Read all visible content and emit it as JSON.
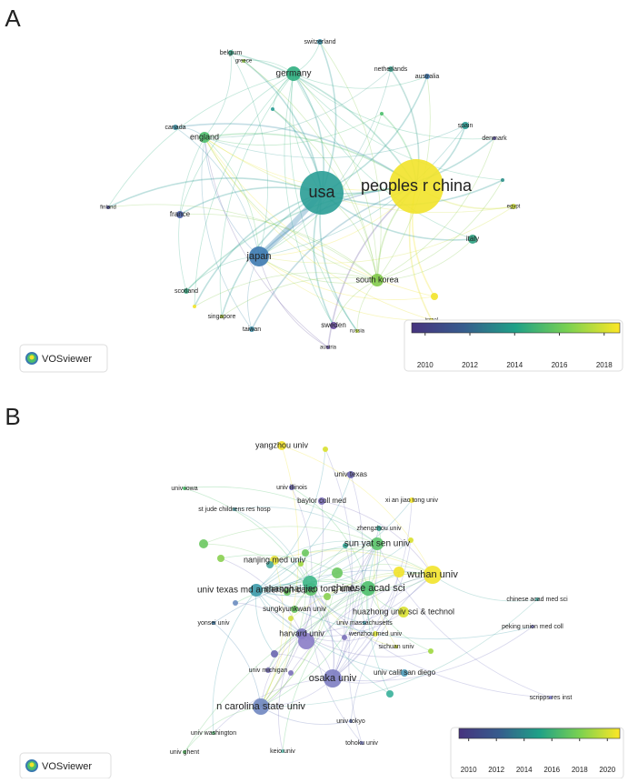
{
  "panels": [
    {
      "label": "A",
      "nodes": [
        "peoples r china",
        "usa",
        "japan",
        "germany",
        "england",
        "france",
        "south korea",
        "italy",
        "spain",
        "switzerland",
        "belgium",
        "greece",
        "netherlands",
        "australia",
        "canada",
        "denmark",
        "egypt",
        "finland",
        "scotland",
        "singapore",
        "taiwan",
        "sweden",
        "austria",
        "russia",
        "israel"
      ],
      "logo": "VOSviewer",
      "colorbar": {
        "range": [
          2009.4,
          2018.7
        ],
        "ticks": [
          2010,
          2012,
          2014,
          2016,
          2018
        ]
      }
    },
    {
      "label": "B",
      "nodes": [
        "yangzhou univ",
        "univ texas",
        "univ iowa",
        "univ illinois",
        "baylor coll med",
        "xi an jiao tong univ",
        "st jude childrens res hosp",
        "zhengzhou univ",
        "nanjing med univ",
        "sun yat sen univ",
        "univ texas md anderson canc",
        "wuhan univ",
        "chinese acad sci",
        "shanghai jiao tong univ",
        "sungkyunkwan univ",
        "huazhong univ sci & technol",
        "chinese acad med sci",
        "peking union med coll",
        "univ massachusetts",
        "wenzhou med univ",
        "yonsei univ",
        "harvard univ",
        "sichuan univ",
        "univ michigan",
        "osaka univ",
        "univ calif san diego",
        "scripps res inst",
        "n carolina state univ",
        "univ tokyo",
        "univ washington",
        "tohoku univ",
        "keio univ",
        "univ ghent"
      ],
      "logo": "VOSviewer",
      "colorbar": {
        "range": [
          2009.3,
          2020.9
        ],
        "ticks": [
          2010,
          2012,
          2014,
          2016,
          2018,
          2020
        ]
      }
    }
  ]
}
